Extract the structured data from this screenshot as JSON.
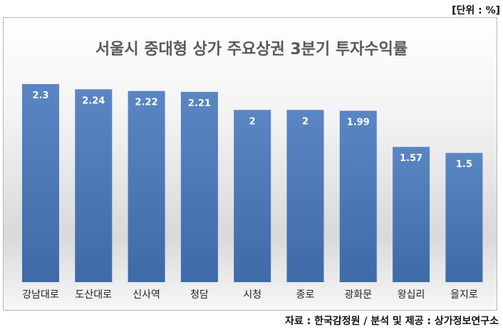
{
  "unit_note": "[단위 : %]",
  "source_note": "자료 : 한국감정원 / 분석 및 제공 : 상가정보연구소",
  "colors": {
    "bar_top": "#5a86c4",
    "bar_bottom": "#3e6aa8",
    "label_text": "#ffffff",
    "title_text": "#595959"
  },
  "chart_data": {
    "type": "bar",
    "title": "서울시 중대형 상가 주요상권 3분기 투자수익률",
    "categories": [
      "강남대로",
      "도산대로",
      "신사역",
      "청담",
      "시청",
      "종로",
      "광화문",
      "왕십리",
      "을지로"
    ],
    "values": [
      2.3,
      2.24,
      2.22,
      2.21,
      2,
      2,
      1.99,
      1.57,
      1.5
    ],
    "value_labels": [
      "2.3",
      "2.24",
      "2.22",
      "2.21",
      "2",
      "2",
      "1.99",
      "1.57",
      "1.5"
    ],
    "xlabel": "",
    "ylabel": "",
    "grid": false,
    "legend": "none"
  }
}
